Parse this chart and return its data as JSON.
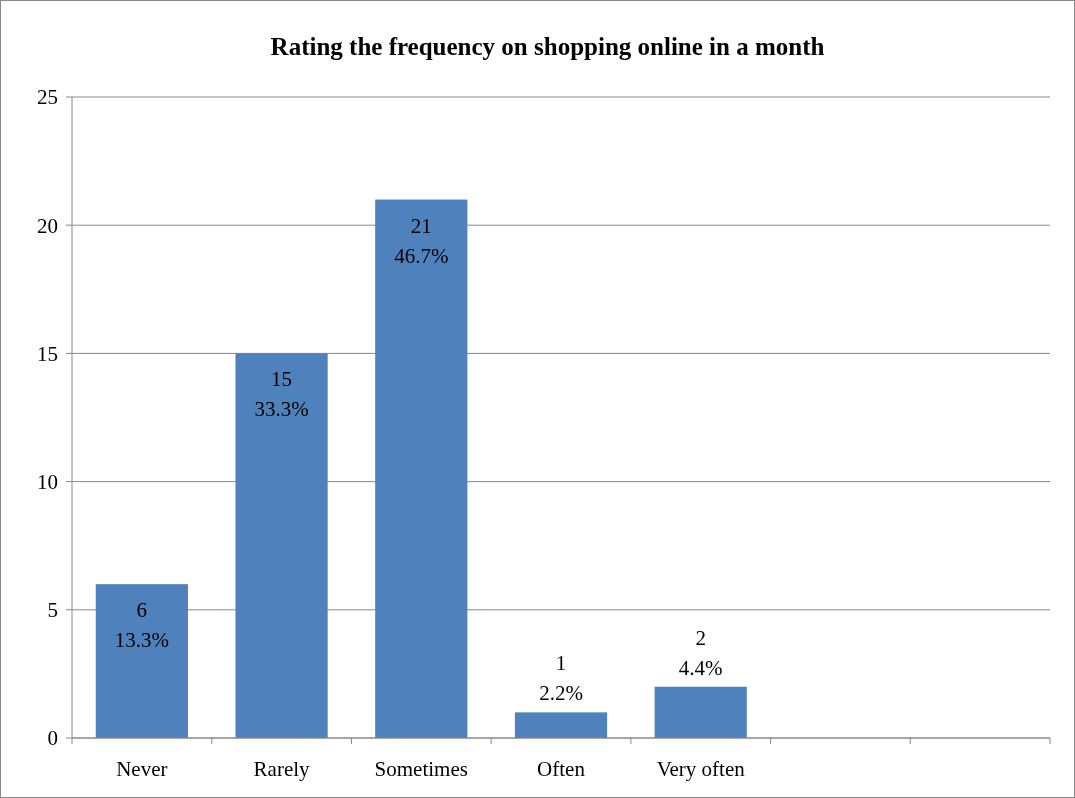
{
  "chart_data": {
    "type": "bar",
    "title": "Rating the frequency on shopping online in a month",
    "categories": [
      "Never",
      "Rarely",
      "Sometimes",
      "Often",
      "Very often",
      null,
      null
    ],
    "values": [
      6,
      15,
      21,
      1,
      2,
      null,
      null
    ],
    "value_labels": [
      "6\n13.3%",
      "15\n33.3%",
      "21\n46.7%",
      "1\n2.2%",
      "2\n4.4%",
      null,
      null
    ],
    "color": "#4f81bd",
    "ylim": [
      0,
      25
    ],
    "yticks": [
      0,
      5,
      10,
      15,
      20,
      25
    ],
    "grid": "y"
  }
}
